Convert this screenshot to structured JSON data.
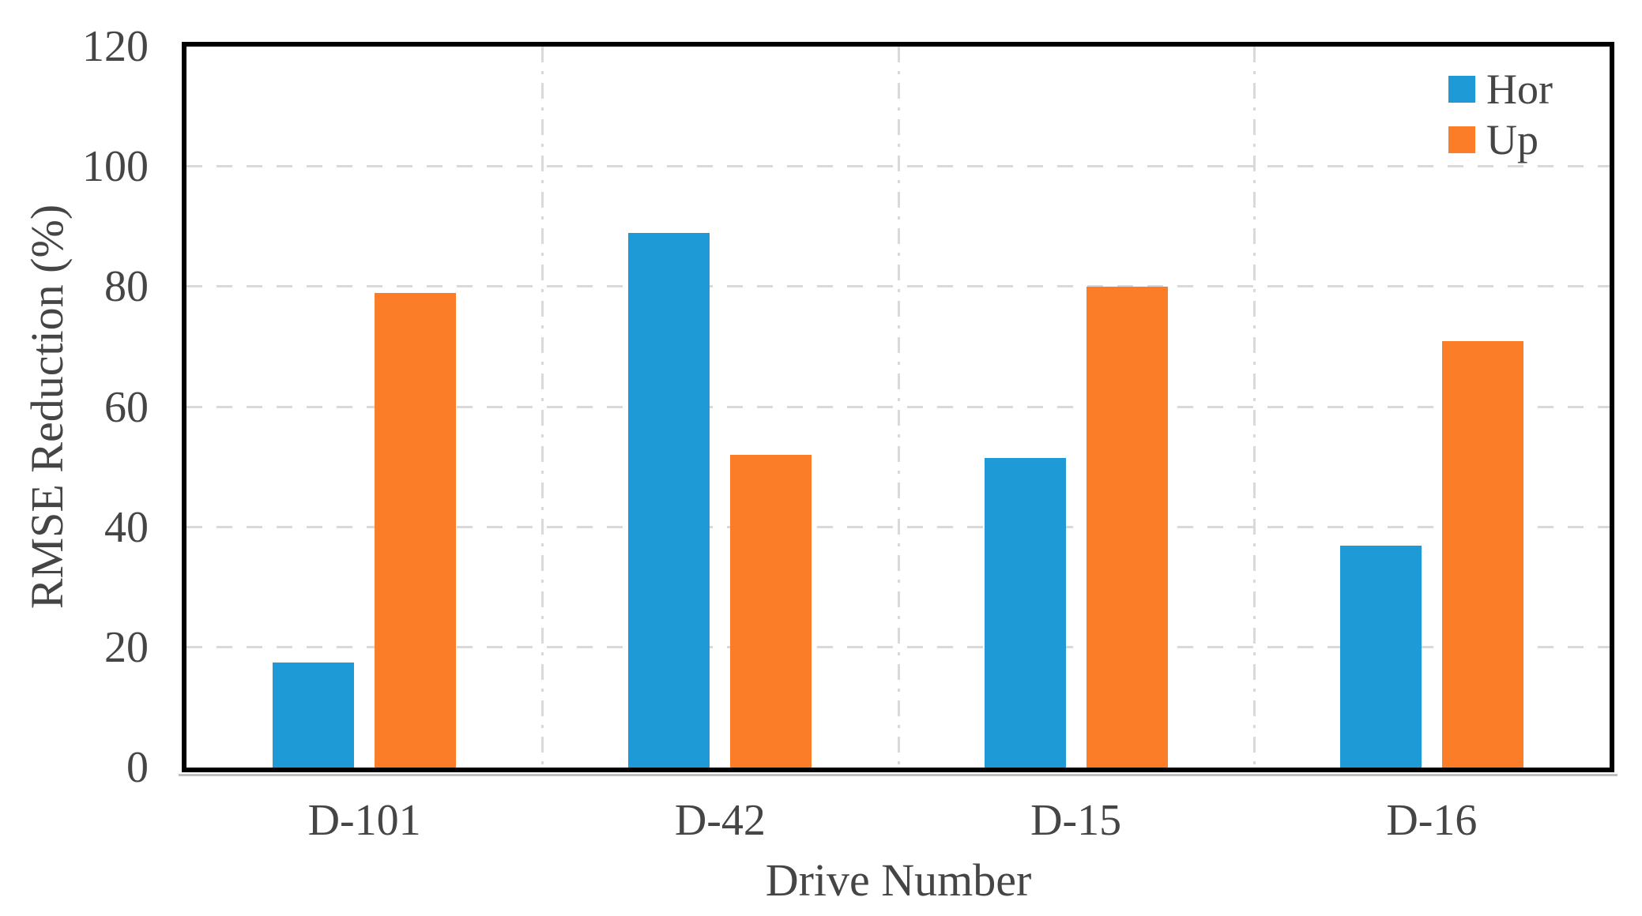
{
  "chart_data": {
    "type": "bar",
    "title": "",
    "xlabel": "Drive Number",
    "ylabel": "RMSE Reduction (%)",
    "categories": [
      "D-101",
      "D-42",
      "D-15",
      "D-16"
    ],
    "series": [
      {
        "name": "Hor",
        "color": "#1E9AD6",
        "values": [
          17.5,
          89,
          51.5,
          37
        ]
      },
      {
        "name": "Up",
        "color": "#FB7D27",
        "values": [
          79,
          52,
          80,
          71
        ]
      }
    ],
    "ylim": [
      0,
      120
    ],
    "yticks": [
      0,
      20,
      40,
      60,
      80,
      100,
      120
    ],
    "grid": {
      "horizontal_style": "dashed",
      "vertical_style": "dash-dot",
      "color": "#d9d9d9",
      "vertical_at_category_boundaries": true
    },
    "legend": {
      "position": "top-right",
      "entries": [
        "Hor",
        "Up"
      ]
    },
    "axis_frame_color": "#000000",
    "text_color": "#454545"
  }
}
